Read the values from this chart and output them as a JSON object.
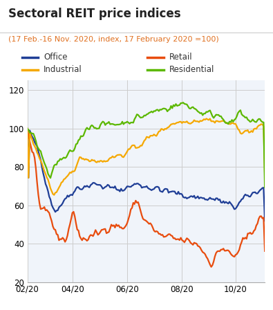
{
  "title": "Sectoral REIT price indices",
  "subtitle": "(17 Feb.-16 Nov. 2020, index, 17 February 2020 =100)",
  "title_color": "#222222",
  "subtitle_color": "#e07020",
  "ylim": [
    20,
    125
  ],
  "yticks": [
    20,
    40,
    60,
    80,
    100,
    120
  ],
  "xtick_labels": [
    "02/20",
    "04/20",
    "06/20",
    "08/20",
    "10/20"
  ],
  "colors": {
    "Office": "#1f3e96",
    "Retail": "#e84c0e",
    "Industrial": "#f5a800",
    "Residential": "#5cb800"
  },
  "background_color": "#ffffff",
  "plot_bg_color": "#f0f4fa",
  "grid_color": "#cccccc"
}
